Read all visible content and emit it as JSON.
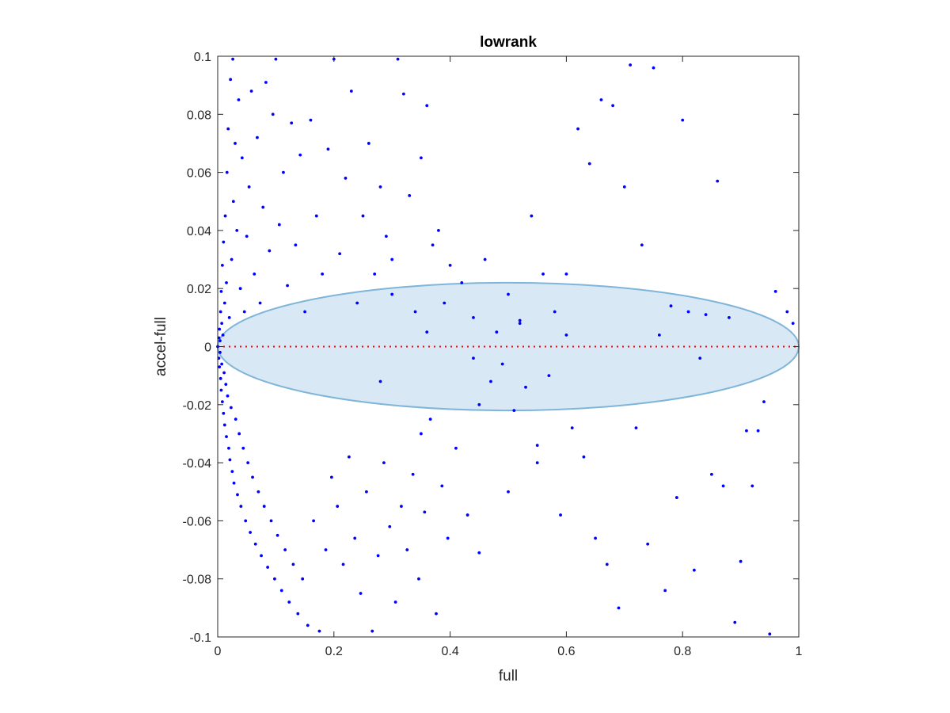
{
  "chart_data": {
    "type": "scatter",
    "title": "lowrank",
    "xlabel": "full",
    "ylabel": "accel-full",
    "xlim": [
      0,
      1
    ],
    "ylim": [
      -0.1,
      0.1
    ],
    "x_ticks": [
      0,
      0.2,
      0.4,
      0.6,
      0.8,
      1
    ],
    "x_tick_labels": [
      "0",
      "0.2",
      "0.4",
      "0.6",
      "0.8",
      "1"
    ],
    "y_ticks": [
      -0.1,
      -0.08,
      -0.06,
      -0.04,
      -0.02,
      0,
      0.02,
      0.04,
      0.06,
      0.08,
      0.1
    ],
    "y_tick_labels": [
      "-0.1",
      "-0.08",
      "-0.06",
      "-0.04",
      "-0.02",
      "0",
      "0.02",
      "0.04",
      "0.06",
      "0.08",
      "0.1"
    ],
    "grid": false,
    "box": true,
    "colors": {
      "points": "#0000ff",
      "ellipse_fill": "#a9cde8",
      "ellipse_edge": "#7fb5d9",
      "reference_line": "#ff0000",
      "axes": "#262626"
    },
    "reference_line": {
      "y": 0,
      "style": "dotted"
    },
    "ellipse": {
      "center_x": 0.5,
      "center_y": 0,
      "radius_x": 0.5,
      "radius_y": 0.022,
      "fill_opacity": 0.45
    },
    "series": [
      {
        "marker": "dot",
        "points": [
          [
            0.0,
            0.0
          ],
          [
            0.002,
            0.003
          ],
          [
            0.002,
            -0.004
          ],
          [
            0.003,
            0.006
          ],
          [
            0.003,
            -0.007
          ],
          [
            0.004,
            0.002
          ],
          [
            0.004,
            -0.002
          ],
          [
            0.005,
            0.012
          ],
          [
            0.005,
            -0.011
          ],
          [
            0.006,
            0.019
          ],
          [
            0.006,
            -0.015
          ],
          [
            0.007,
            0.008
          ],
          [
            0.007,
            -0.006
          ],
          [
            0.008,
            0.028
          ],
          [
            0.008,
            -0.019
          ],
          [
            0.009,
            0.004
          ],
          [
            0.01,
            -0.023
          ],
          [
            0.01,
            0.036
          ],
          [
            0.011,
            -0.009
          ],
          [
            0.012,
            0.015
          ],
          [
            0.012,
            -0.027
          ],
          [
            0.013,
            0.045
          ],
          [
            0.014,
            -0.013
          ],
          [
            0.015,
            0.022
          ],
          [
            0.015,
            -0.031
          ],
          [
            0.016,
            0.06
          ],
          [
            0.017,
            -0.017
          ],
          [
            0.018,
            0.075
          ],
          [
            0.019,
            -0.035
          ],
          [
            0.02,
            0.01
          ],
          [
            0.021,
            -0.039
          ],
          [
            0.022,
            0.092
          ],
          [
            0.023,
            -0.021
          ],
          [
            0.024,
            0.03
          ],
          [
            0.025,
            -0.043
          ],
          [
            0.026,
            0.099
          ],
          [
            0.027,
            0.05
          ],
          [
            0.028,
            -0.047
          ],
          [
            0.03,
            0.07
          ],
          [
            0.031,
            -0.025
          ],
          [
            0.033,
            0.04
          ],
          [
            0.034,
            -0.051
          ],
          [
            0.036,
            0.085
          ],
          [
            0.037,
            -0.03
          ],
          [
            0.039,
            0.02
          ],
          [
            0.04,
            -0.055
          ],
          [
            0.042,
            0.065
          ],
          [
            0.044,
            -0.035
          ],
          [
            0.046,
            0.012
          ],
          [
            0.048,
            -0.06
          ],
          [
            0.05,
            0.038
          ],
          [
            0.052,
            -0.04
          ],
          [
            0.054,
            0.055
          ],
          [
            0.056,
            -0.064
          ],
          [
            0.058,
            0.088
          ],
          [
            0.06,
            -0.045
          ],
          [
            0.063,
            0.025
          ],
          [
            0.065,
            -0.068
          ],
          [
            0.068,
            0.072
          ],
          [
            0.07,
            -0.05
          ],
          [
            0.073,
            0.015
          ],
          [
            0.075,
            -0.072
          ],
          [
            0.078,
            0.048
          ],
          [
            0.08,
            -0.055
          ],
          [
            0.083,
            0.091
          ],
          [
            0.086,
            -0.076
          ],
          [
            0.089,
            0.033
          ],
          [
            0.092,
            -0.06
          ],
          [
            0.095,
            0.08
          ],
          [
            0.098,
            -0.08
          ],
          [
            0.1,
            0.099
          ],
          [
            0.103,
            -0.065
          ],
          [
            0.106,
            0.042
          ],
          [
            0.11,
            -0.084
          ],
          [
            0.113,
            0.06
          ],
          [
            0.116,
            -0.07
          ],
          [
            0.12,
            0.021
          ],
          [
            0.123,
            -0.088
          ],
          [
            0.127,
            0.077
          ],
          [
            0.13,
            -0.075
          ],
          [
            0.134,
            0.035
          ],
          [
            0.138,
            -0.092
          ],
          [
            0.142,
            0.066
          ],
          [
            0.146,
            -0.08
          ],
          [
            0.15,
            0.012
          ],
          [
            0.155,
            -0.096
          ],
          [
            0.16,
            0.078
          ],
          [
            0.165,
            -0.06
          ],
          [
            0.17,
            0.045
          ],
          [
            0.175,
            -0.098
          ],
          [
            0.18,
            0.025
          ],
          [
            0.186,
            -0.07
          ],
          [
            0.19,
            0.068
          ],
          [
            0.196,
            -0.045
          ],
          [
            0.2,
            0.099
          ],
          [
            0.206,
            -0.055
          ],
          [
            0.21,
            0.032
          ],
          [
            0.216,
            -0.075
          ],
          [
            0.22,
            0.058
          ],
          [
            0.226,
            -0.038
          ],
          [
            0.23,
            0.088
          ],
          [
            0.236,
            -0.066
          ],
          [
            0.24,
            0.015
          ],
          [
            0.246,
            -0.085
          ],
          [
            0.25,
            0.045
          ],
          [
            0.256,
            -0.05
          ],
          [
            0.26,
            0.07
          ],
          [
            0.266,
            -0.098
          ],
          [
            0.27,
            0.025
          ],
          [
            0.276,
            -0.072
          ],
          [
            0.28,
            0.055
          ],
          [
            0.286,
            -0.04
          ],
          [
            0.29,
            0.038
          ],
          [
            0.296,
            -0.062
          ],
          [
            0.3,
            0.018
          ],
          [
            0.306,
            -0.088
          ],
          [
            0.31,
            0.099
          ],
          [
            0.316,
            -0.055
          ],
          [
            0.32,
            0.087
          ],
          [
            0.326,
            -0.07
          ],
          [
            0.33,
            0.052
          ],
          [
            0.336,
            -0.044
          ],
          [
            0.34,
            0.012
          ],
          [
            0.346,
            -0.08
          ],
          [
            0.35,
            0.065
          ],
          [
            0.356,
            -0.057
          ],
          [
            0.36,
            0.083
          ],
          [
            0.366,
            -0.025
          ],
          [
            0.37,
            0.035
          ],
          [
            0.376,
            -0.092
          ],
          [
            0.38,
            0.04
          ],
          [
            0.386,
            -0.048
          ],
          [
            0.39,
            0.015
          ],
          [
            0.396,
            -0.066
          ],
          [
            0.4,
            0.028
          ],
          [
            0.41,
            -0.035
          ],
          [
            0.42,
            0.022
          ],
          [
            0.43,
            -0.058
          ],
          [
            0.44,
            0.01
          ],
          [
            0.45,
            -0.02
          ],
          [
            0.46,
            0.03
          ],
          [
            0.47,
            -0.012
          ],
          [
            0.48,
            0.005
          ],
          [
            0.49,
            -0.006
          ],
          [
            0.5,
            0.018
          ],
          [
            0.51,
            -0.022
          ],
          [
            0.52,
            0.008
          ],
          [
            0.53,
            -0.014
          ],
          [
            0.54,
            0.045
          ],
          [
            0.55,
            -0.04
          ],
          [
            0.56,
            0.025
          ],
          [
            0.57,
            -0.01
          ],
          [
            0.58,
            0.012
          ],
          [
            0.59,
            -0.058
          ],
          [
            0.6,
            0.004
          ],
          [
            0.61,
            -0.028
          ],
          [
            0.62,
            0.075
          ],
          [
            0.63,
            -0.038
          ],
          [
            0.64,
            0.063
          ],
          [
            0.65,
            -0.066
          ],
          [
            0.66,
            0.085
          ],
          [
            0.67,
            -0.075
          ],
          [
            0.68,
            0.083
          ],
          [
            0.69,
            -0.09
          ],
          [
            0.7,
            0.055
          ],
          [
            0.71,
            0.097
          ],
          [
            0.72,
            -0.028
          ],
          [
            0.73,
            0.035
          ],
          [
            0.74,
            -0.068
          ],
          [
            0.75,
            0.096
          ],
          [
            0.76,
            0.004
          ],
          [
            0.77,
            -0.084
          ],
          [
            0.78,
            0.014
          ],
          [
            0.79,
            -0.052
          ],
          [
            0.8,
            0.078
          ],
          [
            0.81,
            0.012
          ],
          [
            0.82,
            -0.077
          ],
          [
            0.83,
            -0.004
          ],
          [
            0.84,
            0.011
          ],
          [
            0.85,
            -0.044
          ],
          [
            0.86,
            0.057
          ],
          [
            0.87,
            -0.048
          ],
          [
            0.88,
            0.01
          ],
          [
            0.89,
            -0.095
          ],
          [
            0.9,
            -0.074
          ],
          [
            0.91,
            -0.029
          ],
          [
            0.92,
            -0.048
          ],
          [
            0.93,
            -0.029
          ],
          [
            0.94,
            -0.019
          ],
          [
            0.95,
            -0.099
          ],
          [
            0.96,
            0.019
          ],
          [
            0.98,
            0.012
          ],
          [
            0.99,
            0.008
          ],
          [
            0.6,
            0.025
          ],
          [
            0.52,
            0.009
          ],
          [
            0.44,
            -0.004
          ],
          [
            0.36,
            0.005
          ],
          [
            0.28,
            -0.012
          ],
          [
            0.5,
            -0.05
          ],
          [
            0.45,
            -0.071
          ],
          [
            0.55,
            -0.034
          ],
          [
            0.35,
            -0.03
          ],
          [
            0.3,
            0.03
          ]
        ]
      }
    ]
  }
}
